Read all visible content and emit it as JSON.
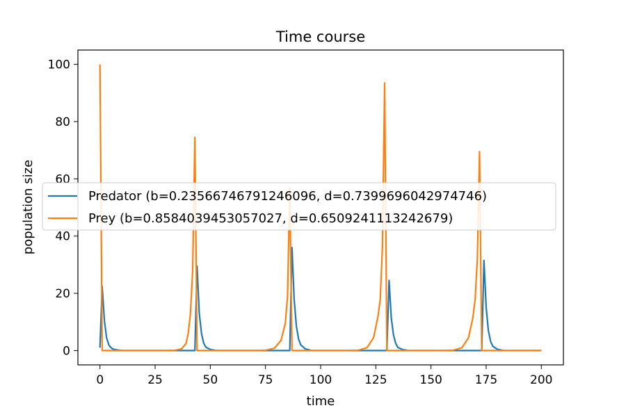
{
  "chart_data": {
    "type": "line",
    "title": "Time course",
    "xlabel": "time",
    "ylabel": "population size",
    "xlim": [
      -10,
      210
    ],
    "ylim": [
      -5,
      105
    ],
    "xticks": [
      0,
      25,
      50,
      75,
      100,
      125,
      150,
      175,
      200
    ],
    "yticks": [
      0,
      20,
      40,
      60,
      80,
      100
    ],
    "xtick_labels": [
      "0",
      "25",
      "50",
      "75",
      "100",
      "125",
      "150",
      "175",
      "200"
    ],
    "ytick_labels": [
      "0",
      "20",
      "40",
      "60",
      "80",
      "100"
    ],
    "grid": false,
    "legend_position": "center-left",
    "series": [
      {
        "name": "Predator (b=0.23566746791246096, d=0.7399696042974746)",
        "color": "#1f77b4",
        "points": [
          [
            0,
            1
          ],
          [
            1,
            22.5
          ],
          [
            2,
            10.5
          ],
          [
            3,
            4.5
          ],
          [
            4,
            2
          ],
          [
            5,
            1
          ],
          [
            6,
            0.5
          ],
          [
            8,
            0.2
          ],
          [
            10,
            0
          ],
          [
            43,
            0
          ],
          [
            44,
            29.5
          ],
          [
            45,
            13
          ],
          [
            46,
            6
          ],
          [
            47,
            2.6
          ],
          [
            48,
            1.2
          ],
          [
            50,
            0.4
          ],
          [
            53,
            0
          ],
          [
            86,
            0
          ],
          [
            87,
            36
          ],
          [
            88,
            18
          ],
          [
            89,
            8.5
          ],
          [
            90,
            4
          ],
          [
            91,
            2
          ],
          [
            93,
            0.6
          ],
          [
            96,
            0
          ],
          [
            130,
            0
          ],
          [
            131,
            24.5
          ],
          [
            132,
            11.5
          ],
          [
            133,
            5.5
          ],
          [
            134,
            2.5
          ],
          [
            135,
            1.1
          ],
          [
            137,
            0.4
          ],
          [
            140,
            0
          ],
          [
            173,
            0
          ],
          [
            174,
            31.5
          ],
          [
            175,
            15
          ],
          [
            176,
            7
          ],
          [
            177,
            3.2
          ],
          [
            178,
            1.5
          ],
          [
            180,
            0.5
          ],
          [
            183,
            0
          ],
          [
            200,
            0
          ]
        ]
      },
      {
        "name": "Prey (b=0.8584039453057027, d=0.6509241113242679)",
        "color": "#ff7f0e",
        "points": [
          [
            0,
            100
          ],
          [
            1,
            0
          ],
          [
            30,
            0
          ],
          [
            34,
            0.1
          ],
          [
            37,
            0.6
          ],
          [
            39,
            2.5
          ],
          [
            40,
            6
          ],
          [
            41,
            13
          ],
          [
            42,
            28
          ],
          [
            43,
            74.5
          ],
          [
            44,
            0
          ],
          [
            70,
            0
          ],
          [
            75,
            0.1
          ],
          [
            79,
            0.8
          ],
          [
            82,
            3.5
          ],
          [
            84,
            9.5
          ],
          [
            85,
            19
          ],
          [
            86,
            57
          ],
          [
            87,
            0
          ],
          [
            112,
            0
          ],
          [
            117,
            0.1
          ],
          [
            121,
            1
          ],
          [
            124,
            4.5
          ],
          [
            126,
            12
          ],
          [
            127,
            18
          ],
          [
            128,
            36
          ],
          [
            129,
            93.5
          ],
          [
            130,
            0
          ],
          [
            155,
            0
          ],
          [
            160,
            0.1
          ],
          [
            164,
            1
          ],
          [
            167,
            4.5
          ],
          [
            169,
            11.5
          ],
          [
            170,
            18
          ],
          [
            171,
            32
          ],
          [
            172,
            69.5
          ],
          [
            173,
            0
          ],
          [
            200,
            0
          ]
        ]
      }
    ]
  }
}
